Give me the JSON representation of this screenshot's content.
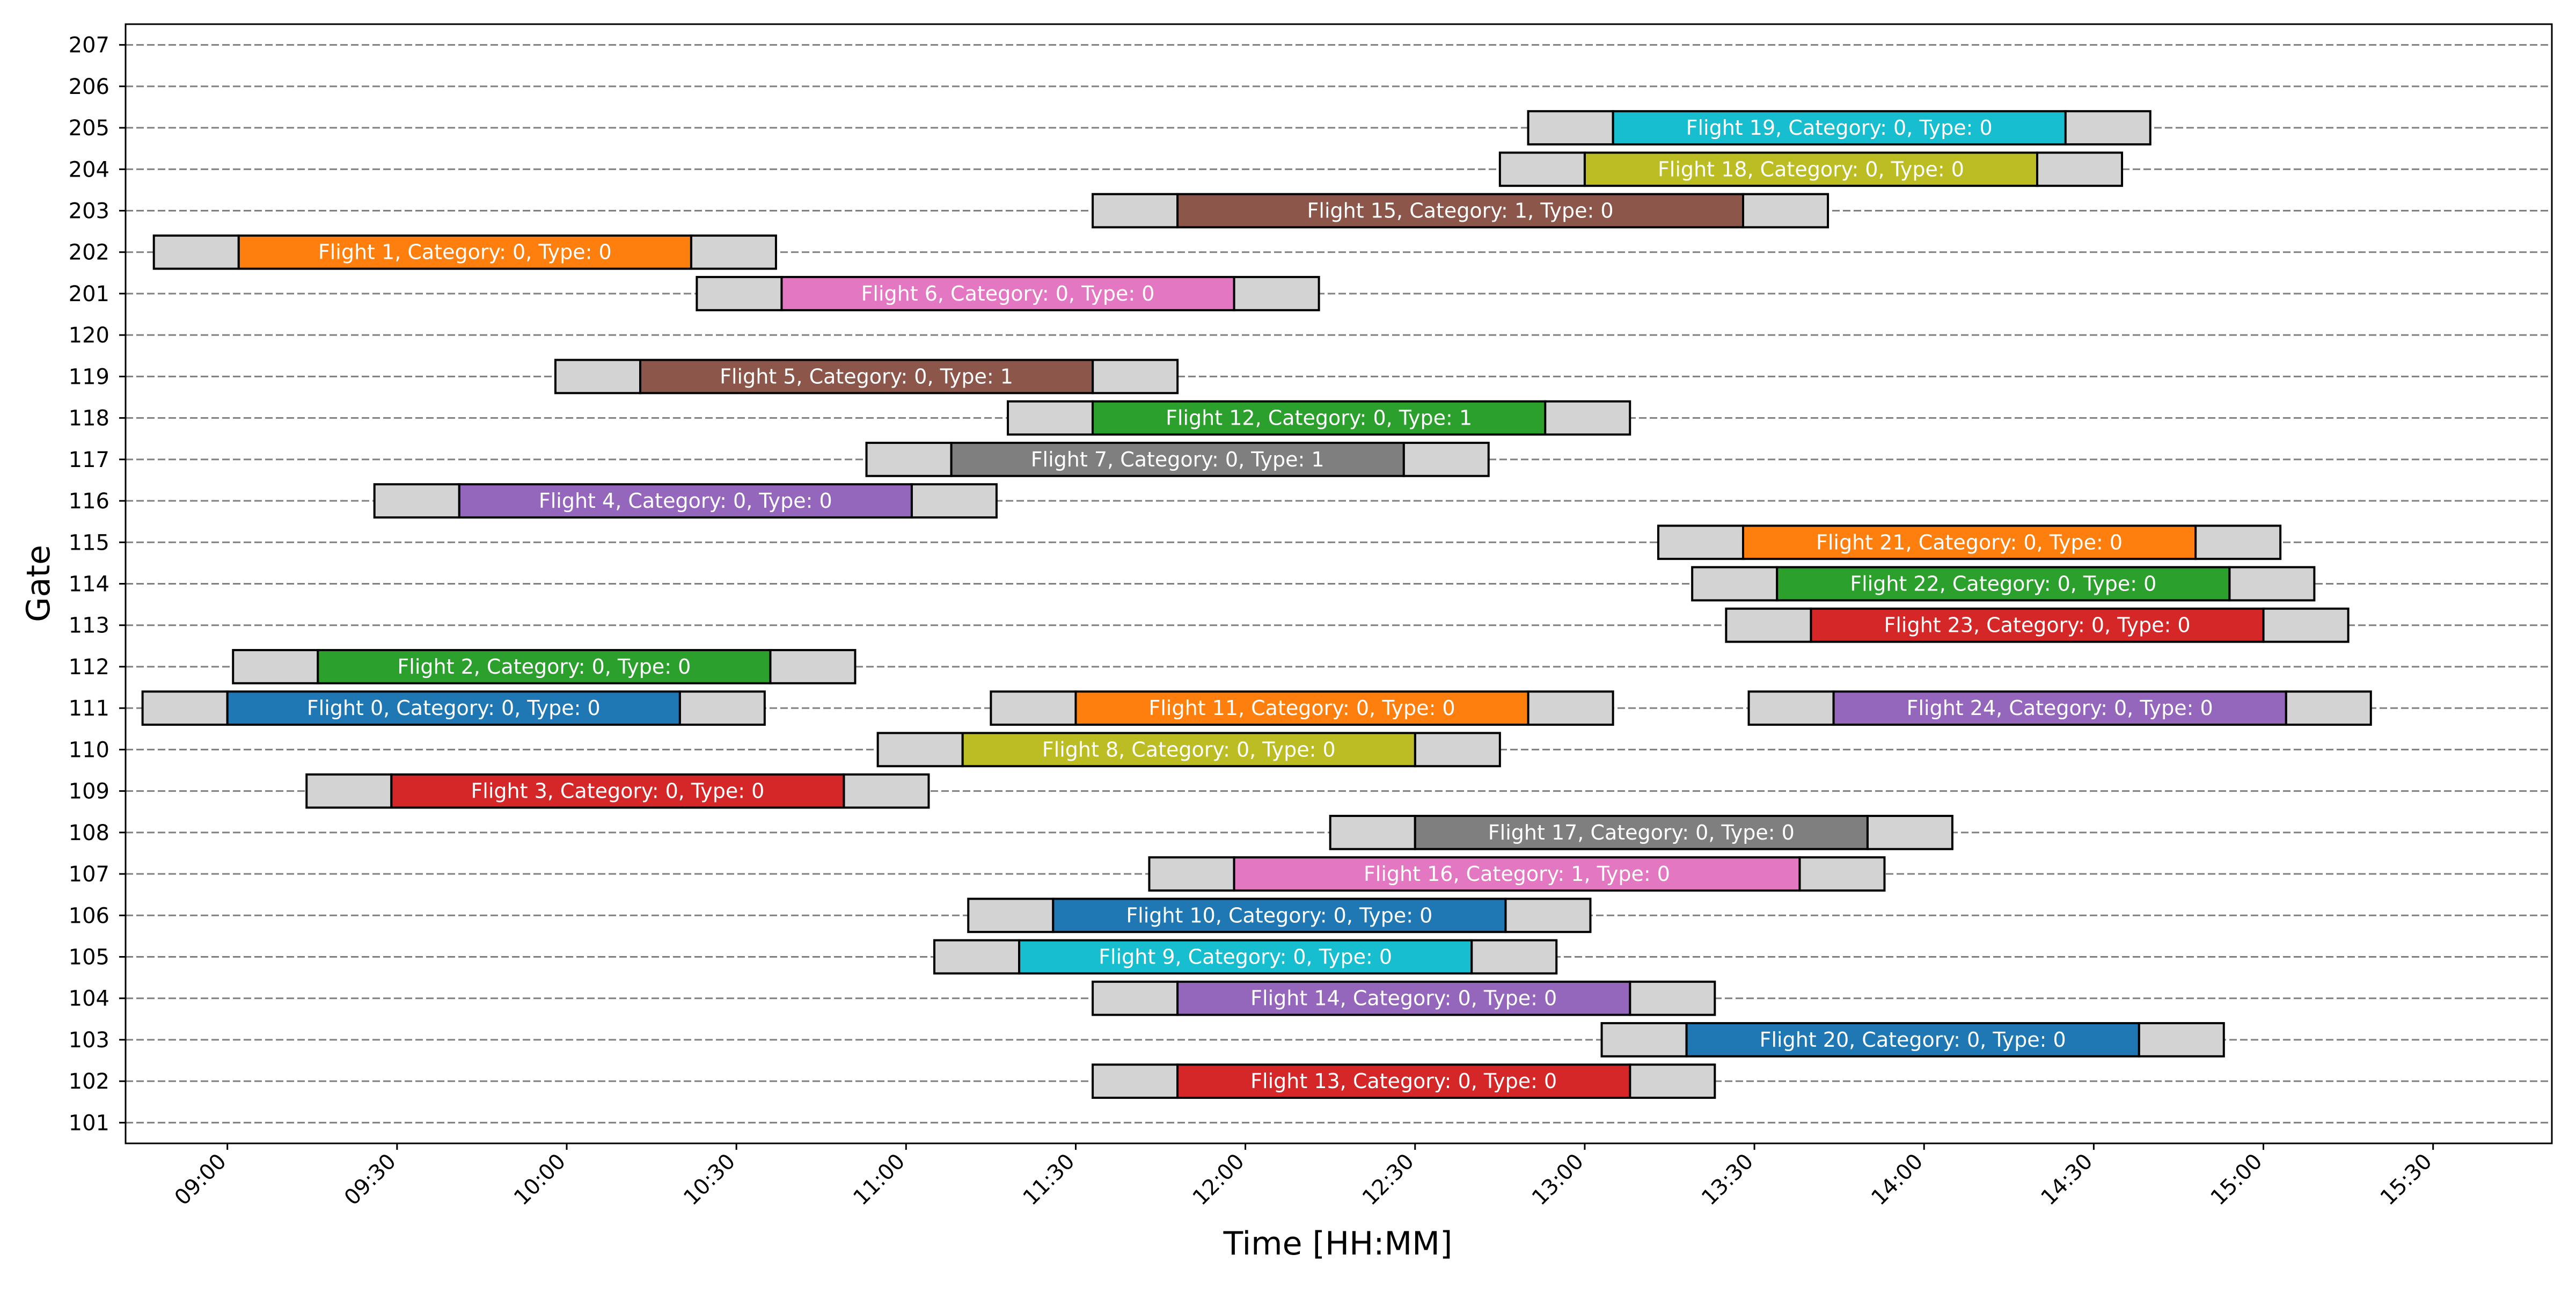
{
  "chart_data": {
    "type": "gantt",
    "title": "",
    "xlabel": "Time [HH:MM]",
    "ylabel": "Gate",
    "xlim": [
      "08:42",
      "15:51"
    ],
    "x_ticks": [
      "09:00",
      "09:30",
      "10:00",
      "10:30",
      "11:00",
      "11:30",
      "12:00",
      "12:30",
      "13:00",
      "13:30",
      "14:00",
      "14:30",
      "15:00",
      "15:30"
    ],
    "gates": [
      "101",
      "102",
      "103",
      "104",
      "105",
      "106",
      "107",
      "108",
      "109",
      "110",
      "111",
      "112",
      "113",
      "114",
      "115",
      "116",
      "117",
      "118",
      "119",
      "120",
      "201",
      "202",
      "203",
      "204",
      "205",
      "206",
      "207"
    ],
    "buffer_minutes": 15,
    "buffer_color": "#d3d3d3",
    "grid": "horizontal dashed",
    "flights": [
      {
        "label": "Flight 0, Category: 0, Type: 0",
        "gate": "111",
        "start": "09:00",
        "end": "10:20",
        "color": "#1f77b4"
      },
      {
        "label": "Flight 1, Category: 0, Type: 0",
        "gate": "202",
        "start": "09:02",
        "end": "10:22",
        "color": "#ff7f0e"
      },
      {
        "label": "Flight 2, Category: 0, Type: 0",
        "gate": "112",
        "start": "09:16",
        "end": "10:36",
        "color": "#2ca02c"
      },
      {
        "label": "Flight 3, Category: 0, Type: 0",
        "gate": "109",
        "start": "09:29",
        "end": "10:49",
        "color": "#d62728"
      },
      {
        "label": "Flight 4, Category: 0, Type: 0",
        "gate": "116",
        "start": "09:41",
        "end": "11:01",
        "color": "#9467bd"
      },
      {
        "label": "Flight 5, Category: 0, Type: 1",
        "gate": "119",
        "start": "10:13",
        "end": "11:33",
        "color": "#8c564b"
      },
      {
        "label": "Flight 6, Category: 0, Type: 0",
        "gate": "201",
        "start": "10:38",
        "end": "11:58",
        "color": "#e377c2"
      },
      {
        "label": "Flight 7, Category: 0, Type: 1",
        "gate": "117",
        "start": "11:08",
        "end": "12:28",
        "color": "#7f7f7f"
      },
      {
        "label": "Flight 8, Category: 0, Type: 0",
        "gate": "110",
        "start": "11:10",
        "end": "12:30",
        "color": "#bcbd22"
      },
      {
        "label": "Flight 9, Category: 0, Type: 0",
        "gate": "105",
        "start": "11:20",
        "end": "12:40",
        "color": "#17becf"
      },
      {
        "label": "Flight 10, Category: 0, Type: 0",
        "gate": "106",
        "start": "11:26",
        "end": "12:46",
        "color": "#1f77b4"
      },
      {
        "label": "Flight 11, Category: 0, Type: 0",
        "gate": "111",
        "start": "11:30",
        "end": "12:50",
        "color": "#ff7f0e"
      },
      {
        "label": "Flight 12, Category: 0, Type: 1",
        "gate": "118",
        "start": "11:33",
        "end": "12:53",
        "color": "#2ca02c"
      },
      {
        "label": "Flight 13, Category: 0, Type: 0",
        "gate": "102",
        "start": "11:48",
        "end": "13:08",
        "color": "#d62728"
      },
      {
        "label": "Flight 14, Category: 0, Type: 0",
        "gate": "104",
        "start": "11:48",
        "end": "13:08",
        "color": "#9467bd"
      },
      {
        "label": "Flight 15, Category: 1, Type: 0",
        "gate": "203",
        "start": "11:48",
        "end": "13:28",
        "color": "#8c564b"
      },
      {
        "label": "Flight 16, Category: 1, Type: 0",
        "gate": "107",
        "start": "11:58",
        "end": "13:38",
        "color": "#e377c2"
      },
      {
        "label": "Flight 17, Category: 0, Type: 0",
        "gate": "108",
        "start": "12:30",
        "end": "13:50",
        "color": "#7f7f7f"
      },
      {
        "label": "Flight 18, Category: 0, Type: 0",
        "gate": "204",
        "start": "13:00",
        "end": "14:20",
        "color": "#bcbd22"
      },
      {
        "label": "Flight 19, Category: 0, Type: 0",
        "gate": "205",
        "start": "13:05",
        "end": "14:25",
        "color": "#17becf"
      },
      {
        "label": "Flight 20, Category: 0, Type: 0",
        "gate": "103",
        "start": "13:18",
        "end": "14:38",
        "color": "#1f77b4"
      },
      {
        "label": "Flight 21, Category: 0, Type: 0",
        "gate": "115",
        "start": "13:28",
        "end": "14:48",
        "color": "#ff7f0e"
      },
      {
        "label": "Flight 22, Category: 0, Type: 0",
        "gate": "114",
        "start": "13:34",
        "end": "14:54",
        "color": "#2ca02c"
      },
      {
        "label": "Flight 23, Category: 0, Type: 0",
        "gate": "113",
        "start": "13:40",
        "end": "15:00",
        "color": "#d62728"
      },
      {
        "label": "Flight 24, Category: 0, Type: 0",
        "gate": "111",
        "start": "13:44",
        "end": "15:04",
        "color": "#9467bd"
      }
    ]
  }
}
